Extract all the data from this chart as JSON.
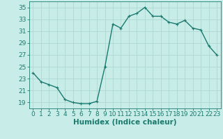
{
  "x": [
    0,
    1,
    2,
    3,
    4,
    5,
    6,
    7,
    8,
    9,
    10,
    11,
    12,
    13,
    14,
    15,
    16,
    17,
    18,
    19,
    20,
    21,
    22,
    23
  ],
  "y": [
    24.0,
    22.5,
    22.0,
    21.5,
    19.5,
    19.0,
    18.8,
    18.8,
    19.2,
    25.0,
    32.2,
    31.5,
    33.5,
    34.0,
    35.0,
    33.5,
    33.5,
    32.5,
    32.2,
    32.8,
    31.5,
    31.2,
    28.5,
    27.0
  ],
  "line_color": "#1a7a6e",
  "marker": "+",
  "markersize": 3,
  "markeredgewidth": 0.8,
  "linewidth": 1.0,
  "background_color": "#c8ece8",
  "grid_color": "#aed8d2",
  "xlabel": "Humidex (Indice chaleur)",
  "ylabel": "",
  "xlim": [
    -0.5,
    23.5
  ],
  "ylim": [
    18,
    36
  ],
  "yticks": [
    19,
    21,
    23,
    25,
    27,
    29,
    31,
    33,
    35
  ],
  "xticks": [
    0,
    1,
    2,
    3,
    4,
    5,
    6,
    7,
    8,
    9,
    10,
    11,
    12,
    13,
    14,
    15,
    16,
    17,
    18,
    19,
    20,
    21,
    22,
    23
  ],
  "tick_color": "#1a7a6e",
  "axis_color": "#1a7a6e",
  "tick_labelsize": 6.5,
  "xlabel_fontsize": 7.5
}
